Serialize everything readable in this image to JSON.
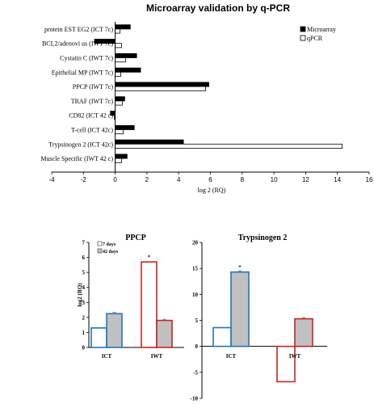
{
  "chart_data": [
    {
      "type": "bar",
      "orientation": "horizontal",
      "title": "Microarray validation by q-PCR",
      "xlabel": "log 2 (RQ)",
      "ylabel": "",
      "xlim": [
        -4,
        16
      ],
      "xticks": [
        -4,
        -2,
        0,
        2,
        4,
        6,
        8,
        10,
        12,
        14,
        16
      ],
      "grid": false,
      "legend_position": "top-right",
      "categories": [
        "protein EST EG2 (ICT 7c)",
        "BCL2/adenovi us (IWT 7c)",
        "Cystatin C (IWT 7c)",
        "Epithelial MP (IWT 7c)",
        "PPCP (IWT 7c)",
        "TRAF (IWT 7c)",
        "CD82 (ICT 42 c)",
        "T-cell (ICT 42c)",
        "Trypsinogen 2 (ICT 42c)",
        "Muscle Specific (IWT 42 c)"
      ],
      "series": [
        {
          "name": "Microarray",
          "color": "#000000",
          "values": [
            0.95,
            -1.3,
            1.35,
            1.6,
            5.9,
            0.6,
            -0.3,
            1.2,
            4.3,
            0.75
          ]
        },
        {
          "name": "qPCR",
          "color": "#ffffff",
          "values": [
            0.3,
            0.4,
            0.65,
            0.35,
            5.7,
            0.45,
            -0.05,
            0.5,
            14.3,
            0.4
          ]
        }
      ]
    },
    {
      "type": "bar",
      "title": "PPCP",
      "ylabel": "log2 (RQ)",
      "ylim": [
        0,
        7
      ],
      "yticks": [
        0,
        1,
        2,
        3,
        4,
        5,
        6,
        7
      ],
      "categories": [
        "ICT",
        "IWT"
      ],
      "legend_position": "top-left",
      "series": [
        {
          "name": "7 days",
          "fill": "#ffffff",
          "values": [
            1.3,
            5.7
          ]
        },
        {
          "name": "42 days",
          "fill": "#c0c0c0",
          "values": [
            2.25,
            1.8
          ]
        }
      ],
      "category_colors": [
        "#1f77b4",
        "#cc2222"
      ],
      "annotations": [
        {
          "category": "IWT",
          "text": "*"
        }
      ]
    },
    {
      "type": "bar",
      "title": "Trypsinogen 2",
      "ylabel": "",
      "ylim": [
        -10,
        20
      ],
      "yticks": [
        -10,
        -5,
        0,
        5,
        10,
        15,
        20
      ],
      "categories": [
        "ICT",
        "IWT"
      ],
      "series": [
        {
          "name": "7 days",
          "fill": "#ffffff",
          "values": [
            3.6,
            -6.8
          ]
        },
        {
          "name": "42 days",
          "fill": "#c0c0c0",
          "values": [
            14.3,
            5.3
          ]
        }
      ],
      "category_colors": [
        "#1f77b4",
        "#cc2222"
      ],
      "annotations": [
        {
          "category": "ICT",
          "text": "*"
        }
      ]
    }
  ]
}
